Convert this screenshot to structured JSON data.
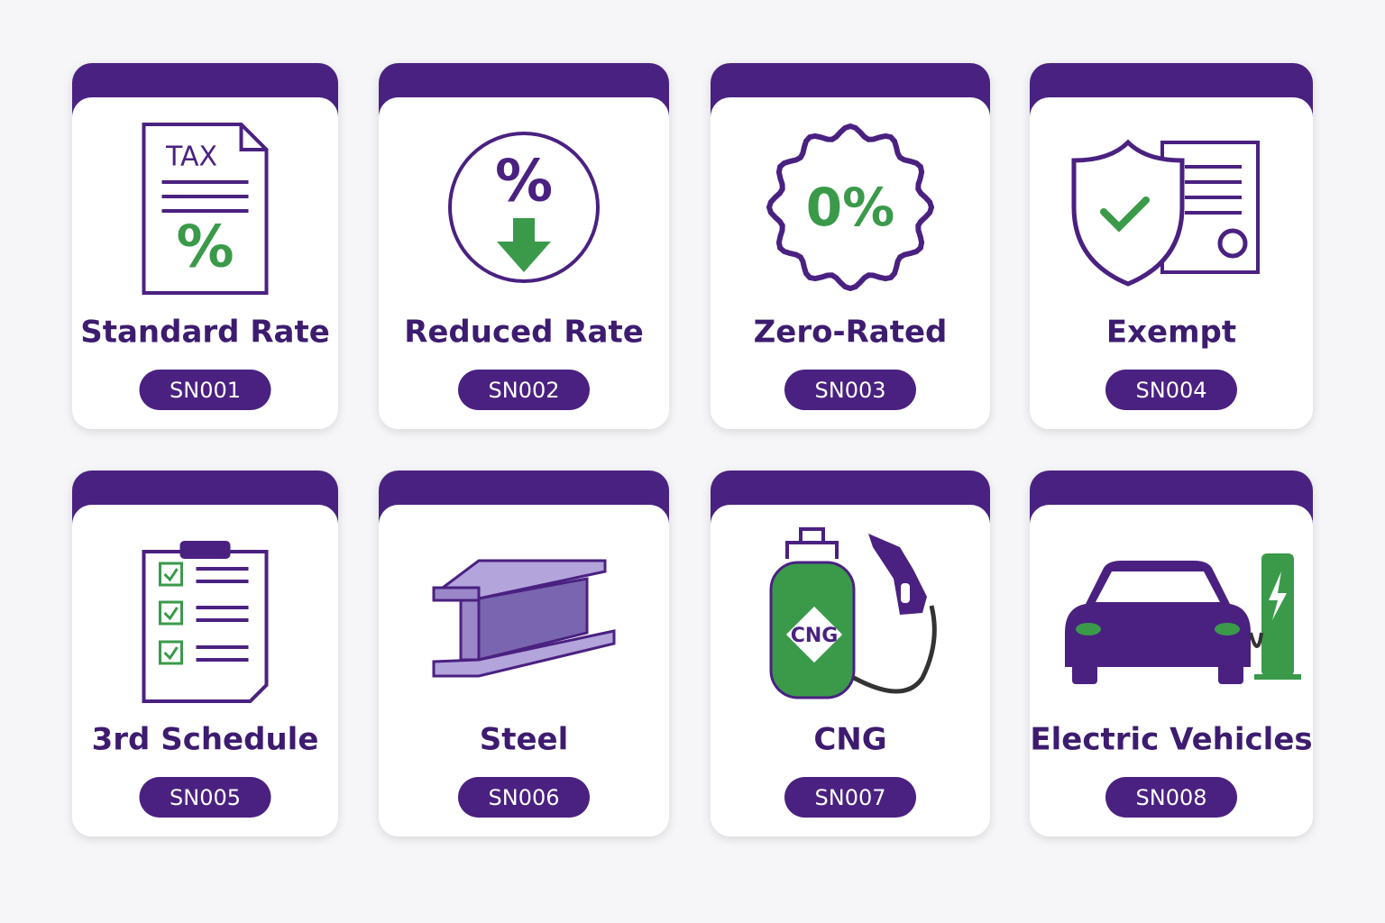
{
  "cards": [
    {
      "title": "Standard Rate",
      "code": "SN001",
      "icon_labels": [
        "TAX",
        "%"
      ]
    },
    {
      "title": "Reduced Rate",
      "code": "SN002",
      "icon_labels": [
        "%"
      ]
    },
    {
      "title": "Zero-Rated",
      "code": "SN003",
      "icon_labels": [
        "0%"
      ]
    },
    {
      "title": "Exempt",
      "code": "SN004"
    },
    {
      "title": "3rd Schedule",
      "code": "SN005"
    },
    {
      "title": "Steel",
      "code": "SN006"
    },
    {
      "title": "CNG",
      "code": "SN007",
      "icon_labels": [
        "CNG"
      ]
    },
    {
      "title": "Electric Vehicles",
      "code": "SN008"
    }
  ]
}
